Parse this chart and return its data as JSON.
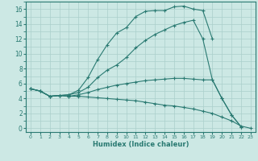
{
  "title": "",
  "xlabel": "Humidex (Indice chaleur)",
  "background_color": "#cce8e4",
  "grid_color": "#aacfcb",
  "line_color": "#2a7a72",
  "xlim": [
    -0.5,
    23.5
  ],
  "ylim": [
    -0.5,
    17.0
  ],
  "lines": [
    {
      "x": [
        0,
        1,
        2,
        3,
        4,
        5,
        6,
        7,
        8,
        9,
        10,
        11,
        12,
        13,
        14,
        15,
        16,
        17,
        18,
        19
      ],
      "y": [
        5.3,
        5.0,
        4.3,
        4.4,
        4.5,
        5.1,
        6.8,
        9.2,
        11.2,
        12.8,
        13.5,
        15.0,
        15.7,
        15.8,
        15.8,
        16.3,
        16.4,
        16.0,
        15.8,
        12.0
      ]
    },
    {
      "x": [
        0,
        1,
        2,
        3,
        4,
        5,
        6,
        7,
        8,
        9,
        10,
        11,
        12,
        13,
        14,
        15,
        16,
        17,
        18,
        19,
        20,
        21,
        22
      ],
      "y": [
        5.3,
        5.0,
        4.3,
        4.4,
        4.5,
        4.8,
        5.5,
        6.8,
        7.8,
        8.5,
        9.5,
        10.8,
        11.8,
        12.6,
        13.2,
        13.8,
        14.2,
        14.5,
        12.0,
        6.5,
        4.0,
        1.8,
        0.2
      ]
    },
    {
      "x": [
        0,
        1,
        2,
        3,
        4,
        5,
        6,
        7,
        8,
        9,
        10,
        11,
        12,
        13,
        14,
        15,
        16,
        17,
        18,
        19,
        20,
        21,
        22
      ],
      "y": [
        5.3,
        5.0,
        4.3,
        4.4,
        4.3,
        4.5,
        4.8,
        5.2,
        5.5,
        5.8,
        6.0,
        6.2,
        6.4,
        6.5,
        6.6,
        6.7,
        6.7,
        6.6,
        6.5,
        6.5,
        4.0,
        1.8,
        0.2
      ]
    },
    {
      "x": [
        0,
        1,
        2,
        3,
        4,
        5,
        6,
        7,
        8,
        9,
        10,
        11,
        12,
        13,
        14,
        15,
        16,
        17,
        18,
        19,
        20,
        21,
        22,
        23
      ],
      "y": [
        5.3,
        5.0,
        4.3,
        4.4,
        4.3,
        4.3,
        4.2,
        4.1,
        4.0,
        3.9,
        3.8,
        3.7,
        3.5,
        3.3,
        3.1,
        3.0,
        2.8,
        2.6,
        2.3,
        2.0,
        1.5,
        1.0,
        0.3,
        0.0
      ]
    }
  ]
}
